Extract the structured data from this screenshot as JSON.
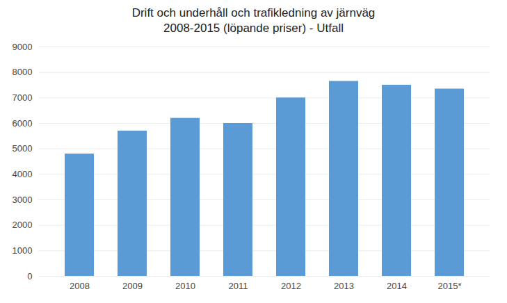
{
  "chart_data": {
    "type": "bar",
    "title": "Drift och underhåll och trafikledning av järnväg",
    "subtitle": "2008-2015 (löpande priser) - Utfall",
    "categories": [
      "2008",
      "2009",
      "2010",
      "2011",
      "2012",
      "2013",
      "2014",
      "2015*"
    ],
    "values": [
      4800,
      5700,
      6200,
      6000,
      7000,
      7650,
      7500,
      7350
    ],
    "color": "#5B9BD5",
    "ylim": [
      0,
      9000
    ],
    "yticks": [
      0,
      1000,
      2000,
      3000,
      4000,
      5000,
      6000,
      7000,
      8000,
      9000
    ],
    "grid": true
  }
}
